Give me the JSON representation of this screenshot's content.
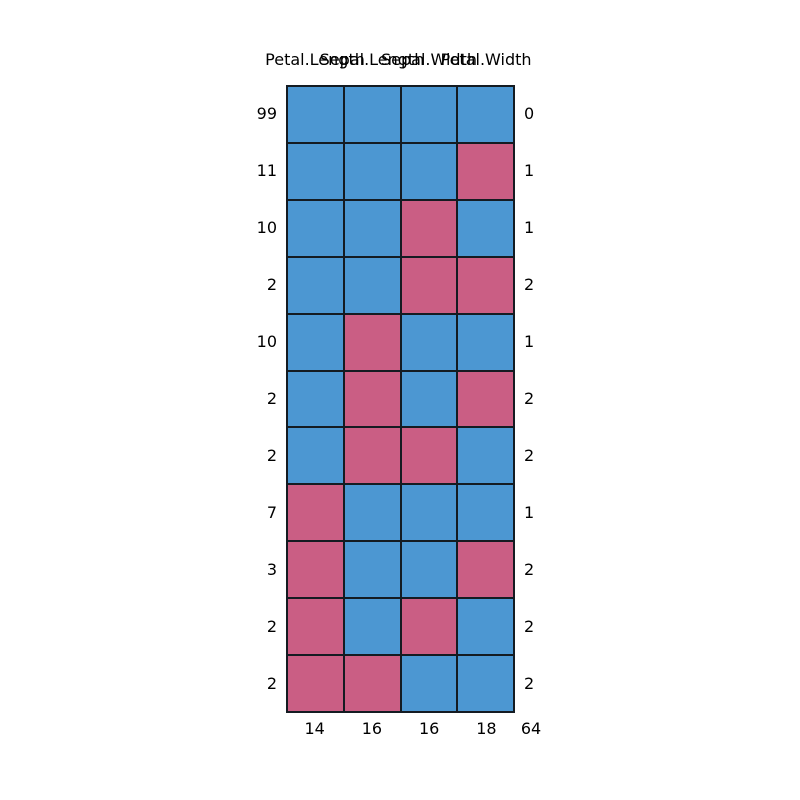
{
  "chart_data": {
    "type": "heatmap",
    "subtype": "missing-data-pattern",
    "title": "",
    "columns": [
      "Petal.Length",
      "Sepal.Length",
      "Sepal.Width",
      "Petal.Width"
    ],
    "cell_encoding": {
      "1": "observed",
      "0": "missing"
    },
    "rows": [
      {
        "count": "99",
        "pattern": [
          1,
          1,
          1,
          1
        ],
        "n_missing": "0"
      },
      {
        "count": "11",
        "pattern": [
          1,
          1,
          1,
          0
        ],
        "n_missing": "1"
      },
      {
        "count": "10",
        "pattern": [
          1,
          1,
          0,
          1
        ],
        "n_missing": "1"
      },
      {
        "count": "2",
        "pattern": [
          1,
          1,
          0,
          0
        ],
        "n_missing": "2"
      },
      {
        "count": "10",
        "pattern": [
          1,
          0,
          1,
          1
        ],
        "n_missing": "1"
      },
      {
        "count": "2",
        "pattern": [
          1,
          0,
          1,
          0
        ],
        "n_missing": "2"
      },
      {
        "count": "2",
        "pattern": [
          1,
          0,
          0,
          1
        ],
        "n_missing": "2"
      },
      {
        "count": "7",
        "pattern": [
          0,
          1,
          1,
          1
        ],
        "n_missing": "1"
      },
      {
        "count": "3",
        "pattern": [
          0,
          1,
          1,
          0
        ],
        "n_missing": "2"
      },
      {
        "count": "2",
        "pattern": [
          0,
          1,
          0,
          1
        ],
        "n_missing": "2"
      },
      {
        "count": "2",
        "pattern": [
          0,
          0,
          1,
          1
        ],
        "n_missing": "2"
      }
    ],
    "column_missing_counts": [
      "14",
      "16",
      "16",
      "18"
    ],
    "total_missing": "64",
    "layout": {
      "grid_columns": 4,
      "grid_rows": 11,
      "legend": "none",
      "axes": "labels-only"
    },
    "colors": {
      "observed": "#4C97D2",
      "missing": "#CA5E84",
      "border": "#141b22",
      "text": "#000000",
      "background": "#ffffff"
    }
  }
}
